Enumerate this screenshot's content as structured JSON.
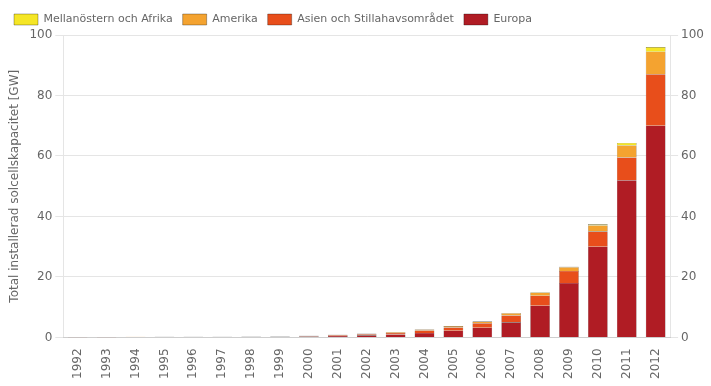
{
  "chart_data": {
    "type": "bar",
    "stacked": true,
    "categories": [
      "1992",
      "1993",
      "1994",
      "1995",
      "1996",
      "1997",
      "1998",
      "1999",
      "2000",
      "2001",
      "2002",
      "2003",
      "2004",
      "2005",
      "2006",
      "2007",
      "2008",
      "2009",
      "2010",
      "2011",
      "2012"
    ],
    "series": [
      {
        "name": "Europa",
        "color": "#b01c24",
        "values": [
          0.1,
          0.1,
          0.15,
          0.15,
          0.15,
          0.15,
          0.2,
          0.2,
          0.3,
          0.5,
          0.7,
          1.0,
          1.5,
          2.2,
          3.2,
          5.0,
          10.5,
          18.0,
          30.0,
          52.0,
          70.0
        ]
      },
      {
        "name": "Asien och Stillahavsområdet",
        "color": "#e84e1b",
        "values": [
          0.04,
          0.04,
          0.04,
          0.05,
          0.05,
          0.05,
          0.08,
          0.1,
          0.15,
          0.25,
          0.35,
          0.5,
          0.8,
          1.1,
          1.5,
          2.3,
          3.3,
          4.0,
          5.0,
          7.5,
          17.0
        ]
      },
      {
        "name": "Amerika",
        "color": "#f4a330",
        "values": [
          0.02,
          0.02,
          0.02,
          0.02,
          0.02,
          0.03,
          0.04,
          0.07,
          0.1,
          0.15,
          0.2,
          0.25,
          0.35,
          0.45,
          0.55,
          0.7,
          1.0,
          1.2,
          2.0,
          4.0,
          7.5
        ]
      },
      {
        "name": "Mellanöstern och Afrika",
        "color": "#f5e626",
        "values": [
          0.01,
          0.01,
          0.01,
          0.01,
          0.01,
          0.01,
          0.01,
          0.01,
          0.01,
          0.01,
          0.02,
          0.03,
          0.04,
          0.07,
          0.08,
          0.1,
          0.15,
          0.2,
          0.4,
          0.8,
          1.5
        ]
      }
    ],
    "ylabel": "Total installerad solcellskapacitet [GW]",
    "ylim": [
      0,
      100
    ],
    "yticks": [
      0,
      20,
      40,
      60,
      80,
      100
    ],
    "y2lim": [
      0,
      100
    ],
    "y2ticks": [
      0,
      20,
      40,
      60,
      80,
      100
    ],
    "grid": true,
    "legend": "upper left"
  }
}
